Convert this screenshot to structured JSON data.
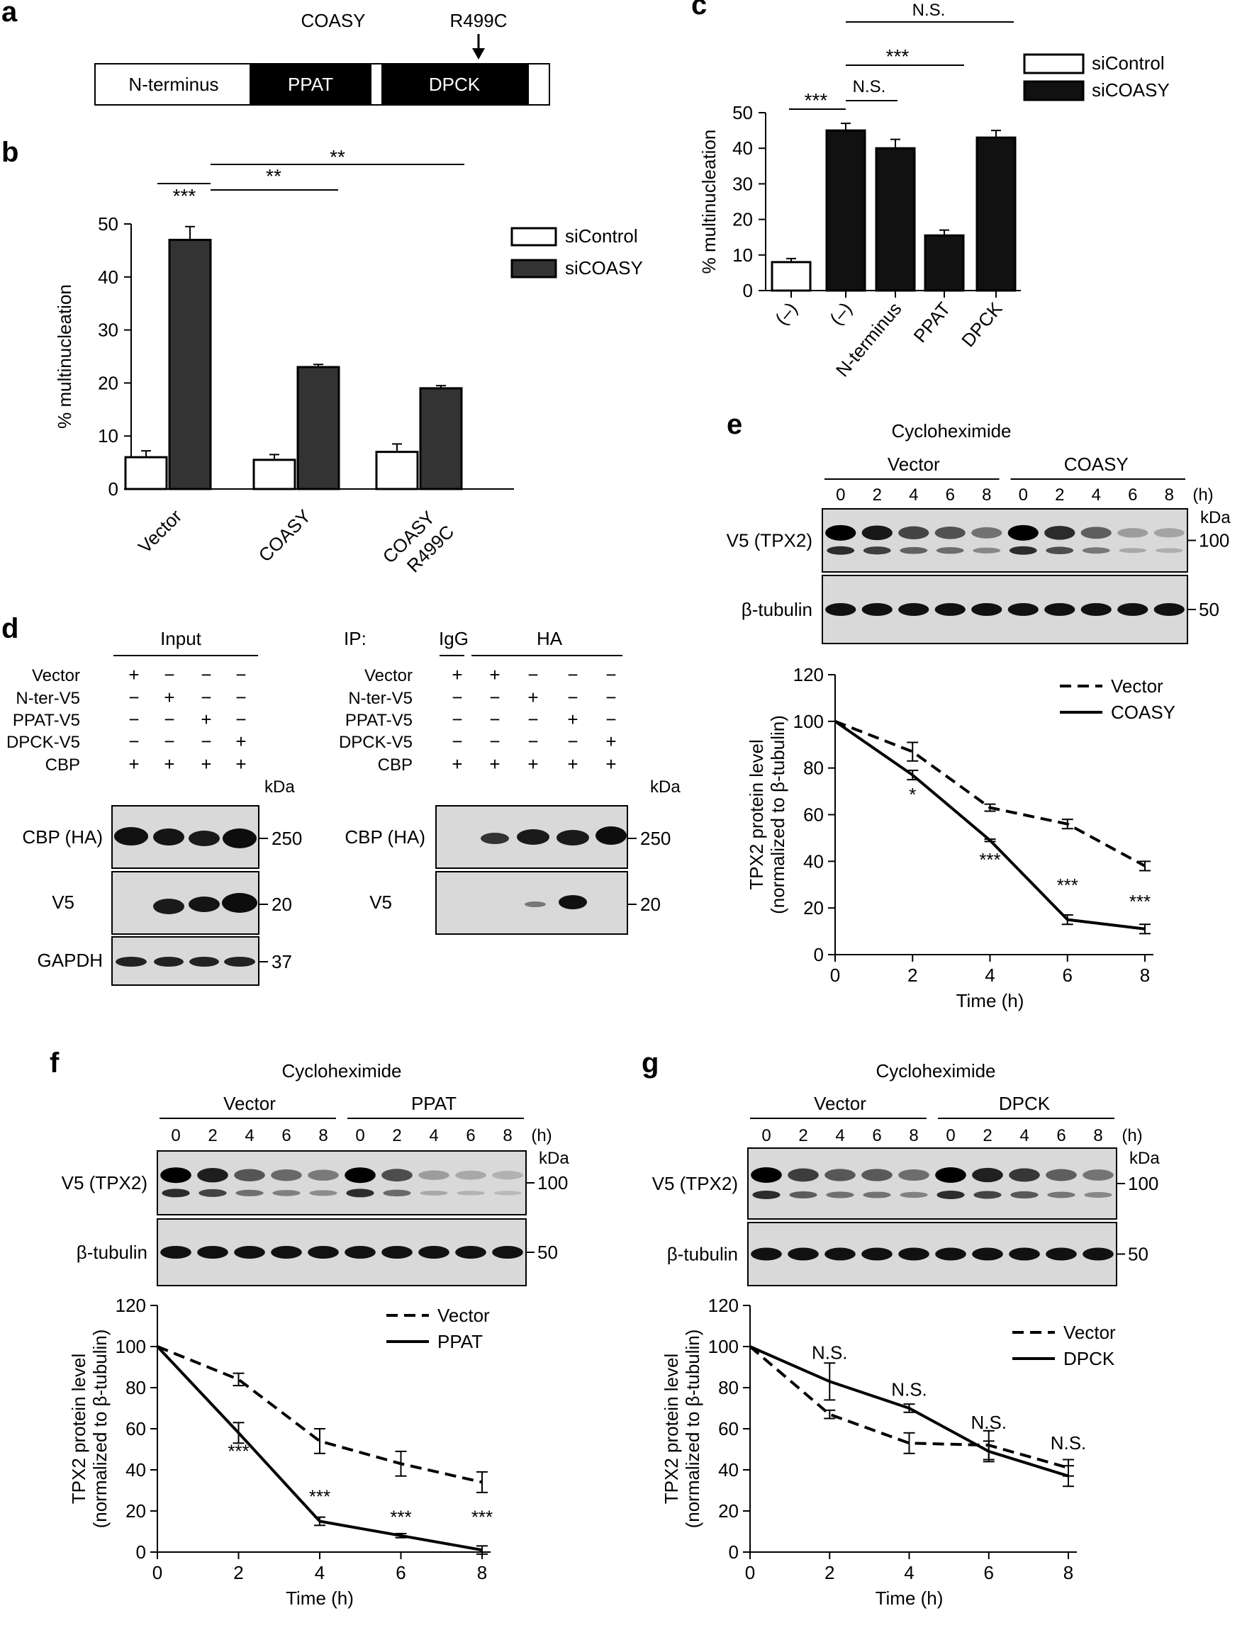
{
  "panel_letters": {
    "a": "a",
    "b": "b",
    "c": "c",
    "d": "d",
    "e": "e",
    "f": "f",
    "g": "g"
  },
  "panel_a": {
    "title": "COASY",
    "mutation": "R499C",
    "domains": [
      "N-terminus",
      "PPAT",
      "DPCK"
    ]
  },
  "blot_labels": {
    "cycloheximide": "Cycloheximide",
    "v5_tpx2": "V5 (TPX2)",
    "beta_tubulin": "β-tubulin",
    "kda": "kDa",
    "hours_unit": "(h)",
    "time_points": [
      "0",
      "2",
      "4",
      "6",
      "8"
    ],
    "mw_100": "100",
    "mw_50": "50"
  },
  "panel_d": {
    "input": "Input",
    "ip": "IP:",
    "igg": "IgG",
    "ha": "HA",
    "row_labels": [
      "Vector",
      "N-ter-V5",
      "PPAT-V5",
      "DPCK-V5",
      "CBP"
    ],
    "input_signs": [
      [
        "+",
        "−",
        "−",
        "−"
      ],
      [
        "−",
        "+",
        "−",
        "−"
      ],
      [
        "−",
        "−",
        "+",
        "−"
      ],
      [
        "−",
        "−",
        "−",
        "+"
      ],
      [
        "+",
        "+",
        "+",
        "+"
      ]
    ],
    "ip_signs": [
      [
        "+",
        "+",
        "−",
        "−",
        "−"
      ],
      [
        "−",
        "−",
        "+",
        "−",
        "−"
      ],
      [
        "−",
        "−",
        "−",
        "+",
        "−"
      ],
      [
        "−",
        "−",
        "−",
        "−",
        "+"
      ],
      [
        "+",
        "+",
        "+",
        "+",
        "+"
      ]
    ],
    "kda": "kDa",
    "blots": [
      "CBP (HA)",
      "V5",
      "GAPDH"
    ],
    "mw": [
      "250",
      "20",
      "37"
    ]
  },
  "panel_e": {
    "group1": "Vector",
    "group2": "COASY"
  },
  "panel_f": {
    "group1": "Vector",
    "group2": "PPAT"
  },
  "panel_g": {
    "group1": "Vector",
    "group2": "DPCK"
  },
  "chart_data": [
    {
      "id": "b",
      "type": "bar",
      "ylabel": "% multinucleation",
      "categories": [
        "Vector",
        "COASY",
        "COASY R499C"
      ],
      "series": [
        {
          "name": "siControl",
          "values": [
            6,
            5.5,
            7
          ],
          "errors": [
            1.2,
            1,
            1.5
          ],
          "color": "#ffffff"
        },
        {
          "name": "siCOASY",
          "values": [
            47,
            23,
            19
          ],
          "errors": [
            2.5,
            0.5,
            0.5
          ],
          "color": "#333333"
        }
      ],
      "ylim": [
        0,
        50
      ],
      "yticks": [
        "0",
        "10",
        "20",
        "30",
        "40",
        "50"
      ],
      "significance": [
        "***",
        "**",
        "**"
      ]
    },
    {
      "id": "c",
      "type": "bar",
      "ylabel": "% multinucleation",
      "categories": [
        "(–)",
        "(–)",
        "N-terminus",
        "PPAT",
        "DPCK"
      ],
      "series": [
        {
          "name": "siControl",
          "color": "#ffffff"
        },
        {
          "name": "siCOASY",
          "color": "#111111"
        }
      ],
      "values": [
        8,
        45,
        40,
        15.5,
        43
      ],
      "errors": [
        1,
        2,
        2.5,
        1.5,
        2
      ],
      "bar_series": [
        "siControl",
        "siCOASY",
        "siCOASY",
        "siCOASY",
        "siCOASY"
      ],
      "ylim": [
        0,
        50
      ],
      "yticks": [
        "0",
        "10",
        "20",
        "30",
        "40",
        "50"
      ],
      "significance": [
        "N.S.",
        "***",
        "***",
        "N.S."
      ]
    },
    {
      "id": "e",
      "type": "line",
      "title": "Cycloheximide",
      "xlabel": "Time (h)",
      "ylabel": "TPX2 protein level",
      "ylabel2": "(normalized to β-tubulin)",
      "x": [
        0,
        2,
        4,
        6,
        8
      ],
      "xticks": [
        "0",
        "2",
        "4",
        "6",
        "8"
      ],
      "yticks": [
        "0",
        "20",
        "40",
        "60",
        "80",
        "100",
        "120"
      ],
      "xlim": [
        0,
        8
      ],
      "ylim": [
        0,
        120
      ],
      "series": [
        {
          "name": "Vector",
          "style": "dashed",
          "values": [
            100,
            87,
            63,
            56,
            38
          ],
          "errors": [
            0,
            4,
            1.5,
            2,
            2
          ]
        },
        {
          "name": "COASY",
          "style": "solid",
          "values": [
            100,
            77,
            49,
            15,
            11
          ],
          "errors": [
            0,
            2,
            0.5,
            2,
            2
          ]
        }
      ],
      "annotations": [
        "",
        "*",
        "***",
        "***",
        "***"
      ]
    },
    {
      "id": "f",
      "type": "line",
      "title": "Cycloheximide",
      "xlabel": "Time (h)",
      "ylabel": "TPX2 protein level",
      "ylabel2": "(normalized to β-tubulin)",
      "x": [
        0,
        2,
        4,
        6,
        8
      ],
      "xticks": [
        "0",
        "2",
        "4",
        "6",
        "8"
      ],
      "yticks": [
        "0",
        "20",
        "40",
        "60",
        "80",
        "100",
        "120"
      ],
      "xlim": [
        0,
        8
      ],
      "ylim": [
        0,
        120
      ],
      "series": [
        {
          "name": "Vector",
          "style": "dashed",
          "values": [
            100,
            84,
            54,
            43,
            34
          ],
          "errors": [
            0,
            3,
            6,
            6,
            5
          ]
        },
        {
          "name": "PPAT",
          "style": "solid",
          "values": [
            100,
            58,
            15,
            8,
            1
          ],
          "errors": [
            0,
            5,
            2,
            1,
            2
          ]
        }
      ],
      "annotations": [
        "",
        "***",
        "***",
        "***",
        "***"
      ]
    },
    {
      "id": "g",
      "type": "line",
      "title": "Cycloheximide",
      "xlabel": "Time (h)",
      "ylabel": "TPX2 protein level",
      "ylabel2": "(normalized to β-tubulin)",
      "x": [
        0,
        2,
        4,
        6,
        8
      ],
      "xticks": [
        "0",
        "2",
        "4",
        "6",
        "8"
      ],
      "yticks": [
        "0",
        "20",
        "40",
        "60",
        "80",
        "100",
        "120"
      ],
      "xlim": [
        0,
        8
      ],
      "ylim": [
        0,
        120
      ],
      "series": [
        {
          "name": "Vector",
          "style": "dashed",
          "values": [
            100,
            67,
            53,
            52,
            41
          ],
          "errors": [
            0,
            2,
            5,
            7,
            4
          ]
        },
        {
          "name": "DPCK",
          "style": "solid",
          "values": [
            100,
            83,
            70,
            49,
            37
          ],
          "errors": [
            0,
            9,
            2,
            5,
            5
          ]
        }
      ],
      "annotations": [
        "",
        "N.S.",
        "N.S.",
        "N.S.",
        "N.S."
      ]
    }
  ]
}
